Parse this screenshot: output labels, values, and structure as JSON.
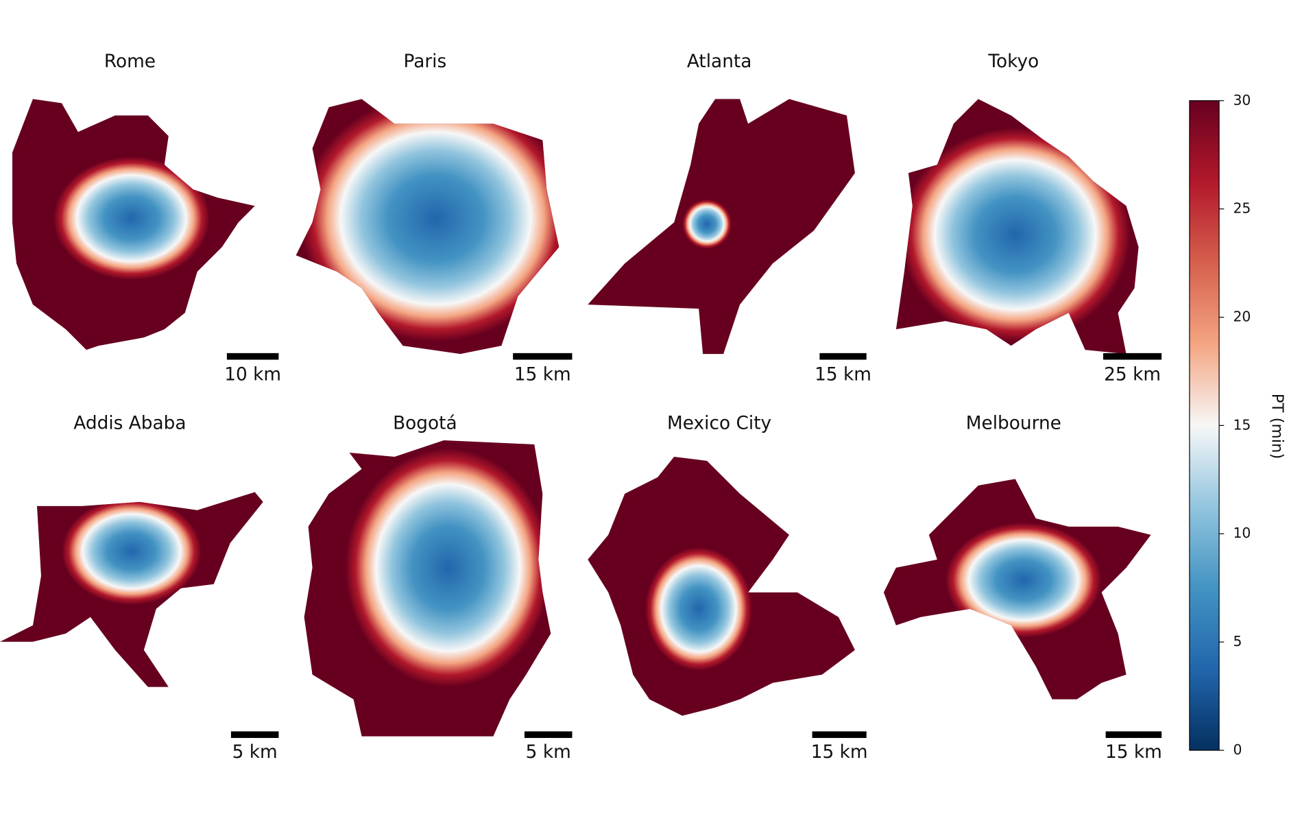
{
  "panels": [
    {
      "title": "Rome",
      "scale_label": "10 km"
    },
    {
      "title": "Paris",
      "scale_label": "15 km"
    },
    {
      "title": "Atlanta",
      "scale_label": "15 km"
    },
    {
      "title": "Tokyo",
      "scale_label": "25 km"
    },
    {
      "title": "Addis Ababa",
      "scale_label": "5 km"
    },
    {
      "title": "Bogotá",
      "scale_label": "5 km"
    },
    {
      "title": "Mexico City",
      "scale_label": "15 km"
    },
    {
      "title": "Melbourne",
      "scale_label": "15 km"
    }
  ],
  "colorbar": {
    "label": "PT (min)",
    "lim": [
      0,
      30
    ],
    "ticks": [
      0,
      5,
      10,
      15,
      20,
      25,
      30
    ],
    "colormap": [
      "#053061",
      "#2166ac",
      "#4393c3",
      "#92c5de",
      "#f7f7f7",
      "#f4a582",
      "#d6604d",
      "#b2182b",
      "#67001f"
    ]
  }
}
